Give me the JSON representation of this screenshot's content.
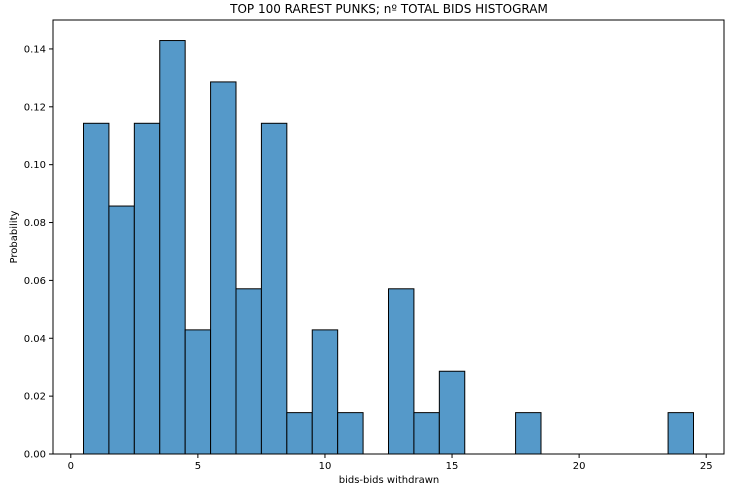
{
  "chart_data": {
    "type": "bar",
    "title": "TOP 100 RAREST PUNKS; nº TOTAL BIDS HISTOGRAM",
    "xlabel": "bids-bids withdrawn",
    "ylabel": "Probability",
    "xlim": [
      -0.7,
      25.7
    ],
    "ylim": [
      0,
      0.15
    ],
    "grid": false,
    "color": "#5599c9",
    "edgecolor": "#000000",
    "xticks": [
      0,
      5,
      10,
      15,
      20,
      25
    ],
    "xtick_labels": [
      "0",
      "5",
      "10",
      "15",
      "20",
      "25"
    ],
    "yticks": [
      0.0,
      0.02,
      0.04,
      0.06,
      0.08,
      0.1,
      0.12,
      0.14
    ],
    "ytick_labels": [
      "0.00",
      "0.02",
      "0.04",
      "0.06",
      "0.08",
      "0.10",
      "0.12",
      "0.14"
    ],
    "bins": [
      {
        "x0": 0.5,
        "x1": 1.5,
        "value": 0.1143
      },
      {
        "x0": 1.5,
        "x1": 2.5,
        "value": 0.0857
      },
      {
        "x0": 2.5,
        "x1": 3.5,
        "value": 0.1143
      },
      {
        "x0": 3.5,
        "x1": 4.5,
        "value": 0.1429
      },
      {
        "x0": 4.5,
        "x1": 5.5,
        "value": 0.0429
      },
      {
        "x0": 5.5,
        "x1": 6.5,
        "value": 0.1286
      },
      {
        "x0": 6.5,
        "x1": 7.5,
        "value": 0.0571
      },
      {
        "x0": 7.5,
        "x1": 8.5,
        "value": 0.1143
      },
      {
        "x0": 8.5,
        "x1": 9.5,
        "value": 0.0143
      },
      {
        "x0": 9.5,
        "x1": 10.5,
        "value": 0.0429
      },
      {
        "x0": 10.5,
        "x1": 11.5,
        "value": 0.0143
      },
      {
        "x0": 11.5,
        "x1": 12.5,
        "value": 0
      },
      {
        "x0": 12.5,
        "x1": 13.5,
        "value": 0.0571
      },
      {
        "x0": 13.5,
        "x1": 14.5,
        "value": 0.0143
      },
      {
        "x0": 14.5,
        "x1": 15.5,
        "value": 0.0286
      },
      {
        "x0": 15.5,
        "x1": 16.5,
        "value": 0
      },
      {
        "x0": 16.5,
        "x1": 17.5,
        "value": 0
      },
      {
        "x0": 17.5,
        "x1": 18.5,
        "value": 0.0143
      },
      {
        "x0": 18.5,
        "x1": 19.5,
        "value": 0
      },
      {
        "x0": 19.5,
        "x1": 20.5,
        "value": 0
      },
      {
        "x0": 20.5,
        "x1": 21.5,
        "value": 0
      },
      {
        "x0": 21.5,
        "x1": 22.5,
        "value": 0
      },
      {
        "x0": 22.5,
        "x1": 23.5,
        "value": 0
      },
      {
        "x0": 23.5,
        "x1": 24.5,
        "value": 0.0143
      }
    ]
  }
}
